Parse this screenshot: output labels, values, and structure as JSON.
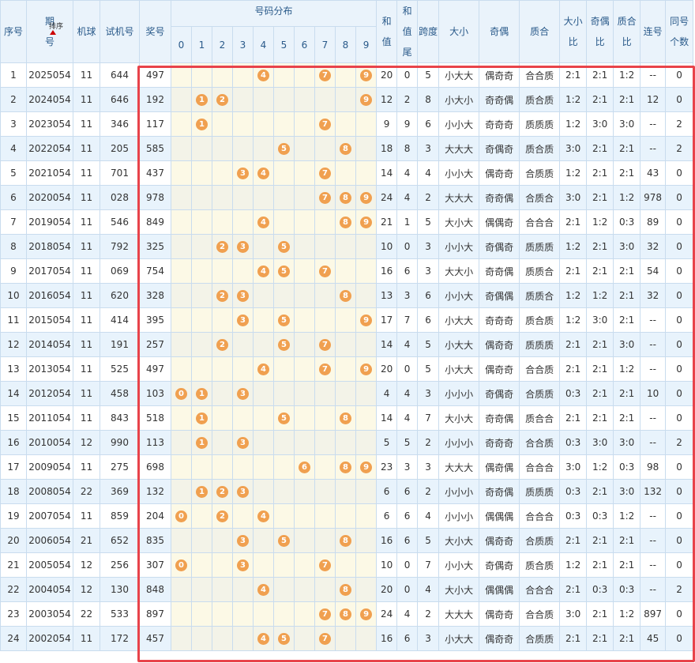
{
  "table": {
    "header": {
      "seq": "序号",
      "period": "期号",
      "sort": "排序",
      "ball": "机球",
      "test": "试机号",
      "award": "奖号",
      "distribution": "号码分布",
      "digits": [
        "0",
        "1",
        "2",
        "3",
        "4",
        "5",
        "6",
        "7",
        "8",
        "9"
      ],
      "tail": [
        "和值",
        "和值尾",
        "跨度",
        "大小",
        "奇偶",
        "质合",
        "大小比",
        "奇偶比",
        "质合比",
        "连号",
        "同号个数"
      ]
    },
    "rows": [
      {
        "cells": [
          "1",
          "2025054",
          "11",
          "644",
          "497",
          "20",
          "0",
          "5",
          "小大大",
          "偶奇奇",
          "合合质",
          "2:1",
          "2:1",
          "1:2",
          "--",
          "0"
        ],
        "balls": [
          4,
          7,
          9
        ]
      },
      {
        "cells": [
          "2",
          "2024054",
          "11",
          "646",
          "192",
          "12",
          "2",
          "8",
          "小大小",
          "奇奇偶",
          "质合质",
          "1:2",
          "2:1",
          "2:1",
          "12",
          "0"
        ],
        "balls": [
          1,
          2,
          9
        ]
      },
      {
        "cells": [
          "3",
          "2023054",
          "11",
          "346",
          "117",
          "9",
          "9",
          "6",
          "小小大",
          "奇奇奇",
          "质质质",
          "1:2",
          "3:0",
          "3:0",
          "--",
          "2"
        ],
        "balls": [
          1,
          7
        ]
      },
      {
        "cells": [
          "4",
          "2022054",
          "11",
          "205",
          "585",
          "18",
          "8",
          "3",
          "大大大",
          "奇偶奇",
          "质合质",
          "3:0",
          "2:1",
          "2:1",
          "--",
          "2"
        ],
        "balls": [
          5,
          8
        ]
      },
      {
        "cells": [
          "5",
          "2021054",
          "11",
          "701",
          "437",
          "14",
          "4",
          "4",
          "小小大",
          "偶奇奇",
          "合质质",
          "1:2",
          "2:1",
          "2:1",
          "43",
          "0"
        ],
        "balls": [
          3,
          4,
          7
        ]
      },
      {
        "cells": [
          "6",
          "2020054",
          "11",
          "028",
          "978",
          "24",
          "4",
          "2",
          "大大大",
          "奇奇偶",
          "合质合",
          "3:0",
          "2:1",
          "1:2",
          "978",
          "0"
        ],
        "balls": [
          7,
          8,
          9
        ]
      },
      {
        "cells": [
          "7",
          "2019054",
          "11",
          "546",
          "849",
          "21",
          "1",
          "5",
          "大小大",
          "偶偶奇",
          "合合合",
          "2:1",
          "1:2",
          "0:3",
          "89",
          "0"
        ],
        "balls": [
          4,
          8,
          9
        ]
      },
      {
        "cells": [
          "8",
          "2018054",
          "11",
          "792",
          "325",
          "10",
          "0",
          "3",
          "小小大",
          "奇偶奇",
          "质质质",
          "1:2",
          "2:1",
          "3:0",
          "32",
          "0"
        ],
        "balls": [
          2,
          3,
          5
        ]
      },
      {
        "cells": [
          "9",
          "2017054",
          "11",
          "069",
          "754",
          "16",
          "6",
          "3",
          "大大小",
          "奇奇偶",
          "质质合",
          "2:1",
          "2:1",
          "2:1",
          "54",
          "0"
        ],
        "balls": [
          4,
          5,
          7
        ]
      },
      {
        "cells": [
          "10",
          "2016054",
          "11",
          "620",
          "328",
          "13",
          "3",
          "6",
          "小小大",
          "奇偶偶",
          "质质合",
          "1:2",
          "1:2",
          "2:1",
          "32",
          "0"
        ],
        "balls": [
          2,
          3,
          8
        ]
      },
      {
        "cells": [
          "11",
          "2015054",
          "11",
          "414",
          "395",
          "17",
          "7",
          "6",
          "小大大",
          "奇奇奇",
          "质合质",
          "1:2",
          "3:0",
          "2:1",
          "--",
          "0"
        ],
        "balls": [
          3,
          5,
          9
        ]
      },
      {
        "cells": [
          "12",
          "2014054",
          "11",
          "191",
          "257",
          "14",
          "4",
          "5",
          "小大大",
          "偶奇奇",
          "质质质",
          "2:1",
          "2:1",
          "3:0",
          "--",
          "0"
        ],
        "balls": [
          2,
          5,
          7
        ]
      },
      {
        "cells": [
          "13",
          "2013054",
          "11",
          "525",
          "497",
          "20",
          "0",
          "5",
          "小大大",
          "偶奇奇",
          "合合质",
          "2:1",
          "2:1",
          "1:2",
          "--",
          "0"
        ],
        "balls": [
          4,
          7,
          9
        ]
      },
      {
        "cells": [
          "14",
          "2012054",
          "11",
          "458",
          "103",
          "4",
          "4",
          "3",
          "小小小",
          "奇偶奇",
          "合质质",
          "0:3",
          "2:1",
          "2:1",
          "10",
          "0"
        ],
        "balls": [
          0,
          1,
          3
        ]
      },
      {
        "cells": [
          "15",
          "2011054",
          "11",
          "843",
          "518",
          "14",
          "4",
          "7",
          "大小大",
          "奇奇偶",
          "质合合",
          "2:1",
          "2:1",
          "2:1",
          "--",
          "0"
        ],
        "balls": [
          1,
          5,
          8
        ]
      },
      {
        "cells": [
          "16",
          "2010054",
          "12",
          "990",
          "113",
          "5",
          "5",
          "2",
          "小小小",
          "奇奇奇",
          "合合质",
          "0:3",
          "3:0",
          "3:0",
          "--",
          "2"
        ],
        "balls": [
          1,
          3
        ]
      },
      {
        "cells": [
          "17",
          "2009054",
          "11",
          "275",
          "698",
          "23",
          "3",
          "3",
          "大大大",
          "偶奇偶",
          "合合合",
          "3:0",
          "1:2",
          "0:3",
          "98",
          "0"
        ],
        "balls": [
          6,
          8,
          9
        ]
      },
      {
        "cells": [
          "18",
          "2008054",
          "22",
          "369",
          "132",
          "6",
          "6",
          "2",
          "小小小",
          "奇奇偶",
          "质质质",
          "0:3",
          "2:1",
          "3:0",
          "132",
          "0"
        ],
        "balls": [
          1,
          2,
          3
        ]
      },
      {
        "cells": [
          "19",
          "2007054",
          "11",
          "859",
          "204",
          "6",
          "6",
          "4",
          "小小小",
          "偶偶偶",
          "合合合",
          "0:3",
          "0:3",
          "1:2",
          "--",
          "0"
        ],
        "balls": [
          0,
          2,
          4
        ]
      },
      {
        "cells": [
          "20",
          "2006054",
          "21",
          "652",
          "835",
          "16",
          "6",
          "5",
          "大小大",
          "偶奇奇",
          "合质质",
          "2:1",
          "2:1",
          "2:1",
          "--",
          "0"
        ],
        "balls": [
          3,
          5,
          8
        ]
      },
      {
        "cells": [
          "21",
          "2005054",
          "12",
          "256",
          "307",
          "10",
          "0",
          "7",
          "小小大",
          "奇偶奇",
          "质合质",
          "1:2",
          "2:1",
          "2:1",
          "--",
          "0"
        ],
        "balls": [
          0,
          3,
          7
        ]
      },
      {
        "cells": [
          "22",
          "2004054",
          "12",
          "130",
          "848",
          "20",
          "0",
          "4",
          "大小大",
          "偶偶偶",
          "合合合",
          "2:1",
          "0:3",
          "0:3",
          "--",
          "2"
        ],
        "balls": [
          4,
          8
        ]
      },
      {
        "cells": [
          "23",
          "2003054",
          "22",
          "533",
          "897",
          "24",
          "4",
          "2",
          "大大大",
          "偶奇奇",
          "合合质",
          "3:0",
          "2:1",
          "1:2",
          "897",
          "0"
        ],
        "balls": [
          7,
          8,
          9
        ]
      },
      {
        "cells": [
          "24",
          "2002054",
          "11",
          "172",
          "457",
          "16",
          "6",
          "3",
          "小大大",
          "偶奇奇",
          "合质质",
          "2:1",
          "2:1",
          "2:1",
          "45",
          "0"
        ],
        "balls": [
          4,
          5,
          7
        ]
      }
    ]
  }
}
